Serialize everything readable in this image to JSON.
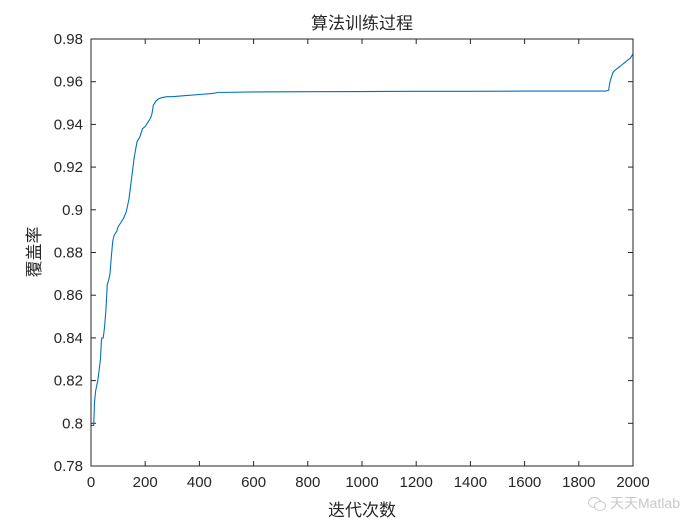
{
  "chart_data": {
    "type": "line",
    "title": "算法训练过程",
    "xlabel": "迭代次数",
    "ylabel": "覆盖率",
    "xlim": [
      0,
      2000
    ],
    "ylim": [
      0.78,
      0.98
    ],
    "xticks": [
      0,
      200,
      400,
      600,
      800,
      1000,
      1200,
      1400,
      1600,
      1800,
      2000
    ],
    "yticks": [
      0.78,
      0.8,
      0.82,
      0.84,
      0.86,
      0.88,
      0.9,
      0.92,
      0.94,
      0.96,
      0.98
    ],
    "ytick_labels": [
      "0.78",
      "0.8",
      "0.82",
      "0.84",
      "0.86",
      "0.88",
      "0.9",
      "0.92",
      "0.94",
      "0.96",
      "0.98"
    ],
    "grid": false,
    "line_color": "#0072bd",
    "series": [
      {
        "x": [
          0,
          5,
          10,
          13,
          17,
          20,
          25,
          30,
          35,
          38,
          40,
          45,
          50,
          55,
          60,
          65,
          70,
          75,
          80,
          85,
          90,
          95,
          100,
          110,
          120,
          130,
          140,
          150,
          155,
          160,
          170,
          180,
          190,
          200,
          205,
          210,
          215,
          220,
          225,
          230,
          240,
          250,
          260,
          280,
          300,
          350,
          400,
          450,
          470,
          500,
          600,
          800,
          1000,
          1200,
          1400,
          1600,
          1800,
          1900,
          1910,
          1915,
          1920,
          1925,
          1930,
          1940,
          1950,
          1960,
          1970,
          1980,
          1990,
          2000
        ],
        "y": [
          0.799,
          0.799,
          0.799,
          0.81,
          0.815,
          0.817,
          0.82,
          0.825,
          0.83,
          0.838,
          0.84,
          0.84,
          0.845,
          0.853,
          0.865,
          0.867,
          0.87,
          0.878,
          0.885,
          0.888,
          0.889,
          0.89,
          0.892,
          0.894,
          0.896,
          0.899,
          0.905,
          0.915,
          0.92,
          0.925,
          0.932,
          0.934,
          0.938,
          0.939,
          0.94,
          0.941,
          0.942,
          0.943,
          0.945,
          0.949,
          0.951,
          0.952,
          0.9525,
          0.953,
          0.953,
          0.9535,
          0.954,
          0.9545,
          0.955,
          0.955,
          0.9552,
          0.9553,
          0.9554,
          0.9555,
          0.9555,
          0.9556,
          0.9556,
          0.9556,
          0.956,
          0.96,
          0.962,
          0.964,
          0.965,
          0.966,
          0.967,
          0.968,
          0.969,
          0.97,
          0.971,
          0.973
        ]
      }
    ]
  },
  "watermark": {
    "text": "天天Matlab",
    "icon": "wechat-icon"
  }
}
